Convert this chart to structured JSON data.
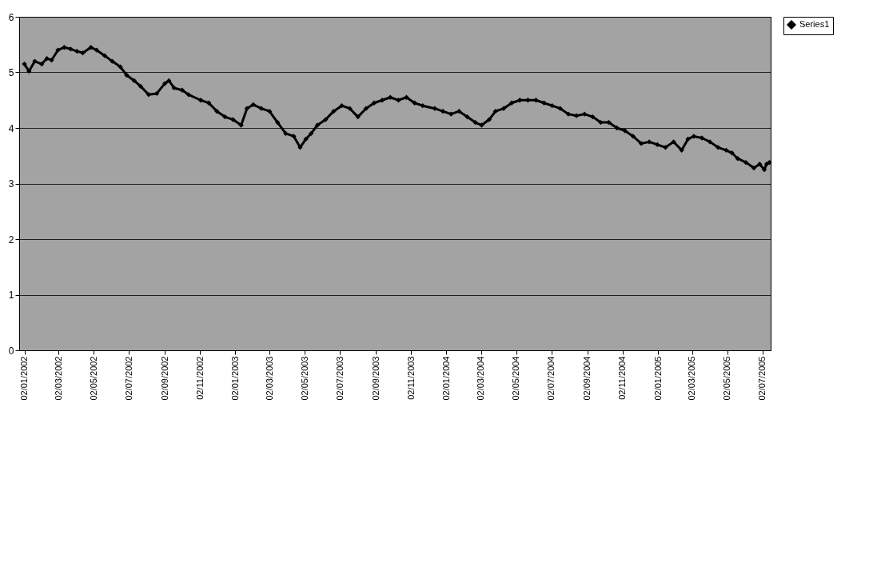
{
  "chart_data": {
    "type": "line",
    "x": [
      "2002-01-02",
      "2002-01-10",
      "2002-01-20",
      "2002-02-01",
      "2002-02-10",
      "2002-02-18",
      "2002-03-01",
      "2002-03-12",
      "2002-03-23",
      "2002-04-03",
      "2002-04-13",
      "2002-04-27",
      "2002-05-07",
      "2002-05-21",
      "2002-06-03",
      "2002-06-17",
      "2002-06-28",
      "2002-07-11",
      "2002-07-22",
      "2002-08-05",
      "2002-08-19",
      "2002-09-02",
      "2002-09-09",
      "2002-09-18",
      "2002-10-02",
      "2002-10-13",
      "2002-11-03",
      "2002-11-17",
      "2002-12-01",
      "2002-12-15",
      "2002-12-29",
      "2003-01-12",
      "2003-01-22",
      "2003-02-02",
      "2003-02-16",
      "2003-03-02",
      "2003-03-16",
      "2003-03-30",
      "2003-04-13",
      "2003-04-24",
      "2003-05-04",
      "2003-05-13",
      "2003-05-24",
      "2003-06-07",
      "2003-06-21",
      "2003-07-05",
      "2003-07-19",
      "2003-08-02",
      "2003-08-16",
      "2003-08-30",
      "2003-09-13",
      "2003-09-27",
      "2003-10-11",
      "2003-10-25",
      "2003-11-08",
      "2003-11-22",
      "2003-12-13",
      "2003-12-27",
      "2004-01-10",
      "2004-01-24",
      "2004-02-07",
      "2004-02-21",
      "2004-03-03",
      "2004-03-16",
      "2004-03-27",
      "2004-04-10",
      "2004-04-24",
      "2004-05-08",
      "2004-05-22",
      "2004-06-05",
      "2004-06-19",
      "2004-07-03",
      "2004-07-17",
      "2004-07-31",
      "2004-08-14",
      "2004-08-28",
      "2004-09-11",
      "2004-09-25",
      "2004-10-09",
      "2004-10-23",
      "2004-11-06",
      "2004-11-20",
      "2004-12-04",
      "2004-12-18",
      "2005-01-01",
      "2005-01-15",
      "2005-01-29",
      "2005-02-12",
      "2005-02-23",
      "2005-03-05",
      "2005-03-19",
      "2005-04-02",
      "2005-04-16",
      "2005-04-30",
      "2005-05-10",
      "2005-05-20",
      "2005-06-03",
      "2005-06-17",
      "2005-06-27",
      "2005-07-05",
      "2005-07-09",
      "2005-07-14"
    ],
    "series": [
      {
        "name": "Series1",
        "color": "#000000",
        "values": [
          5.15,
          5.02,
          5.2,
          5.15,
          5.25,
          5.22,
          5.4,
          5.45,
          5.42,
          5.38,
          5.35,
          5.45,
          5.4,
          5.3,
          5.2,
          5.1,
          4.95,
          4.85,
          4.75,
          4.6,
          4.62,
          4.8,
          4.85,
          4.72,
          4.68,
          4.6,
          4.5,
          4.45,
          4.3,
          4.2,
          4.15,
          4.05,
          4.35,
          4.42,
          4.35,
          4.3,
          4.1,
          3.9,
          3.85,
          3.65,
          3.8,
          3.9,
          4.05,
          4.15,
          4.3,
          4.4,
          4.35,
          4.2,
          4.35,
          4.45,
          4.5,
          4.55,
          4.5,
          4.55,
          4.45,
          4.4,
          4.35,
          4.3,
          4.25,
          4.3,
          4.2,
          4.1,
          4.05,
          4.15,
          4.3,
          4.35,
          4.45,
          4.5,
          4.5,
          4.5,
          4.45,
          4.4,
          4.35,
          4.25,
          4.22,
          4.25,
          4.2,
          4.1,
          4.1,
          4.0,
          3.95,
          3.85,
          3.72,
          3.75,
          3.7,
          3.65,
          3.75,
          3.6,
          3.8,
          3.85,
          3.82,
          3.75,
          3.65,
          3.6,
          3.55,
          3.45,
          3.38,
          3.28,
          3.35,
          3.25,
          3.35,
          3.38
        ]
      }
    ],
    "xlim": [
      "2001-12-24",
      "2005-07-16"
    ],
    "xticks": [
      {
        "value": "2002-01-02",
        "label": "02/01/2002"
      },
      {
        "value": "2002-03-02",
        "label": "02/03/2002"
      },
      {
        "value": "2002-05-02",
        "label": "02/05/2002"
      },
      {
        "value": "2002-07-02",
        "label": "02/07/2002"
      },
      {
        "value": "2002-09-02",
        "label": "02/09/2002"
      },
      {
        "value": "2002-11-02",
        "label": "02/11/2002"
      },
      {
        "value": "2003-01-02",
        "label": "02/01/2003"
      },
      {
        "value": "2003-03-02",
        "label": "02/03/2003"
      },
      {
        "value": "2003-05-02",
        "label": "02/05/2003"
      },
      {
        "value": "2003-07-02",
        "label": "02/07/2003"
      },
      {
        "value": "2003-09-02",
        "label": "02/09/2003"
      },
      {
        "value": "2003-11-02",
        "label": "02/11/2003"
      },
      {
        "value": "2004-01-02",
        "label": "02/01/2004"
      },
      {
        "value": "2004-03-02",
        "label": "02/03/2004"
      },
      {
        "value": "2004-05-02",
        "label": "02/05/2004"
      },
      {
        "value": "2004-07-02",
        "label": "02/07/2004"
      },
      {
        "value": "2004-09-02",
        "label": "02/09/2004"
      },
      {
        "value": "2004-11-02",
        "label": "02/11/2004"
      },
      {
        "value": "2005-01-02",
        "label": "02/01/2005"
      },
      {
        "value": "2005-03-02",
        "label": "02/03/2005"
      },
      {
        "value": "2005-05-02",
        "label": "02/05/2005"
      },
      {
        "value": "2005-07-02",
        "label": "02/07/2005"
      }
    ],
    "ylim": [
      0,
      6
    ],
    "yticks": [
      0,
      1,
      2,
      3,
      4,
      5,
      6
    ],
    "grid": "y",
    "legend": "right",
    "marker": "diamond",
    "line_style": "solid"
  }
}
